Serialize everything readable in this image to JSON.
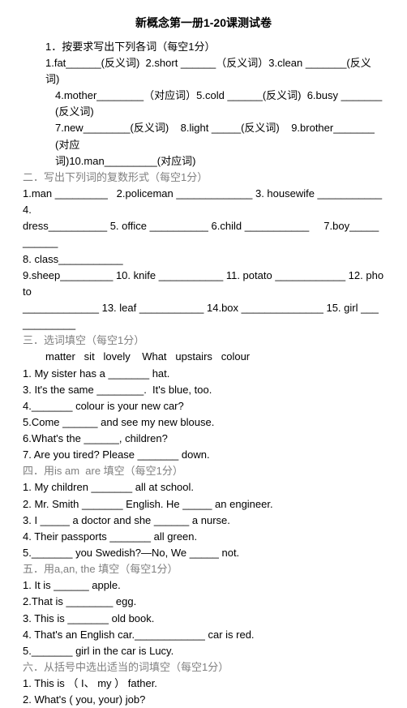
{
  "title": "新概念第一册1-20课测试卷",
  "lines": [
    {
      "cls": "line indent1",
      "text": "1．按要求写出下列各词（每空1分）"
    },
    {
      "cls": "line indent1",
      "text": "1.fat______(反义词)  2.short ______（反义词）3.clean _______(反义词)"
    },
    {
      "cls": "line indent2",
      "text": "4.mother________（对应词）5.cold ______(反义词)  6.busy _______(反义词)"
    },
    {
      "cls": "line indent2",
      "text": "7.new________(反义词)    8.light _____(反义词)    9.brother_______(对应"
    },
    {
      "cls": "line indent2",
      "text": "词)10.man_________(对应词)"
    },
    {
      "cls": "line section-heading",
      "text": "二．写出下列词的复数形式（每空1分）"
    },
    {
      "cls": "line",
      "text": "1.man _________   2.policeman _____________ 3. housewife ___________ 4."
    },
    {
      "cls": "line",
      "text": "dress__________ 5. office __________ 6.child ___________     7.boy___________"
    },
    {
      "cls": "line",
      "text": "8. class___________"
    },
    {
      "cls": "line",
      "text": "9.sheep_________ 10. knife ___________ 11. potato ____________ 12. photo"
    },
    {
      "cls": "line",
      "text": "_____________ 13. leaf ___________ 14.box ______________ 15. girl ____________"
    },
    {
      "cls": "line section-heading",
      "text": "三．选词填空（每空1分）"
    },
    {
      "cls": "line indent1",
      "text": "matter   sit   lovely    What   upstairs   colour"
    },
    {
      "cls": "line",
      "text": "1. My sister has a _______ hat."
    },
    {
      "cls": "line",
      "text": "3. It's the same ________.  It's blue, too."
    },
    {
      "cls": "line",
      "text": "4._______ colour is your new car?"
    },
    {
      "cls": "line",
      "text": "5.Come ______ and see my new blouse."
    },
    {
      "cls": "line",
      "text": "6.What's the ______, children?"
    },
    {
      "cls": "line",
      "text": "7. Are you tired? Please _______ down."
    },
    {
      "cls": "line section-heading",
      "text": "四．用is am  are 填空（每空1分）"
    },
    {
      "cls": "line",
      "text": "1. My children _______ all at school."
    },
    {
      "cls": "line",
      "text": "2. Mr. Smith _______ English. He _____ an engineer."
    },
    {
      "cls": "line",
      "text": "3. I _____ a doctor and she ______ a nurse."
    },
    {
      "cls": "line",
      "text": "4. Their passports _______ all green."
    },
    {
      "cls": "line",
      "text": "5._______ you Swedish?—No, We _____ not."
    },
    {
      "cls": "line section-heading",
      "text": "五．用a,an, the 填空（每空1分）"
    },
    {
      "cls": "line",
      "text": "1. It is ______ apple."
    },
    {
      "cls": "line",
      "text": "2.That is ________ egg."
    },
    {
      "cls": "line",
      "text": "3. This is _______ old book."
    },
    {
      "cls": "line",
      "text": "4. That's an English car.____________ car is red."
    },
    {
      "cls": "line",
      "text": "5._______ girl in the car is Lucy."
    },
    {
      "cls": "line section-heading",
      "text": "六．从括号中选出适当的词填空（每空1分）"
    },
    {
      "cls": "line",
      "text": "1. This is （ I、 my ） father."
    },
    {
      "cls": "line",
      "text": "2. What's ( you, your) job?"
    }
  ]
}
